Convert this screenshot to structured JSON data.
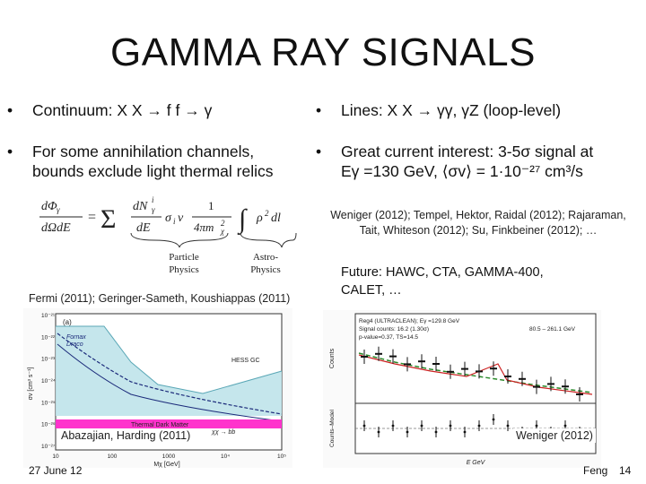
{
  "slide": {
    "title": "GAMMA RAY SIGNALS",
    "bullets": {
      "continuum": "Continuum: X X → f f → γ",
      "lines": "Lines: X X → γγ, γZ (loop-level)",
      "channels_line1": "For some annihilation channels,",
      "channels_line2": "bounds exclude light thermal relics",
      "interest_line1": "Great current interest: 3-5σ signal at",
      "interest_line2": "Eγ =130 GeV, ⟨σv⟩ = 1·10⁻²⁷ cm³/s"
    },
    "bullet_marker": "•",
    "equation_labels": {
      "particle_1": "Particle",
      "particle_2": "Physics",
      "astro_1": "Astro-",
      "astro_2": "Physics"
    },
    "refs_right_1": "Weniger (2012); Tempel, Hektor, Raidal (2012); Rajaraman,",
    "refs_right_2": "Tait, Whiteson (2012); Su, Finkbeiner (2012); …",
    "future_1": "Future: HAWC, CTA, GAMMA-400,",
    "future_2": "CALET, …",
    "refs_left": "Fermi (2011); Geringer-Sameth, Koushiappas (2011)",
    "left_plot": {
      "panel_label": "(a)",
      "label_fornax": "Fornax",
      "label_draco": "Draco",
      "label_hess": "HESS GC",
      "band_label": "Thermal Dark Matter",
      "caption": "Abazajian, Harding (2011)",
      "channel_label": "χχ → bb",
      "yaxis": "σv [cm³ s⁻¹]",
      "xaxis": "Mχ [GeV]",
      "yticks": [
        "10⁻²¹",
        "10⁻²²",
        "10⁻²³",
        "10⁻²⁴",
        "10⁻²⁵",
        "10⁻²⁶",
        "10⁻²⁷"
      ],
      "xticks": [
        "10",
        "100",
        "1000",
        "10⁴",
        "10⁵"
      ]
    },
    "right_plot": {
      "legend_1": "Reg4 (ULTRACLEAN); Eγ =129.8 GeV",
      "legend_2": "Signal counts: 16.2 (1.30σ)",
      "legend_3": "p-value=0.37, TS=14.5",
      "range": "80.5 – 261.1 GeV",
      "yaxis_top": "Counts",
      "yaxis_bottom": "Counts–Model",
      "xaxis": "E  GeV",
      "caption": "Weniger (2012)"
    },
    "footer_date": "27 June 12",
    "footer_author": "Feng",
    "footer_page": "14"
  }
}
